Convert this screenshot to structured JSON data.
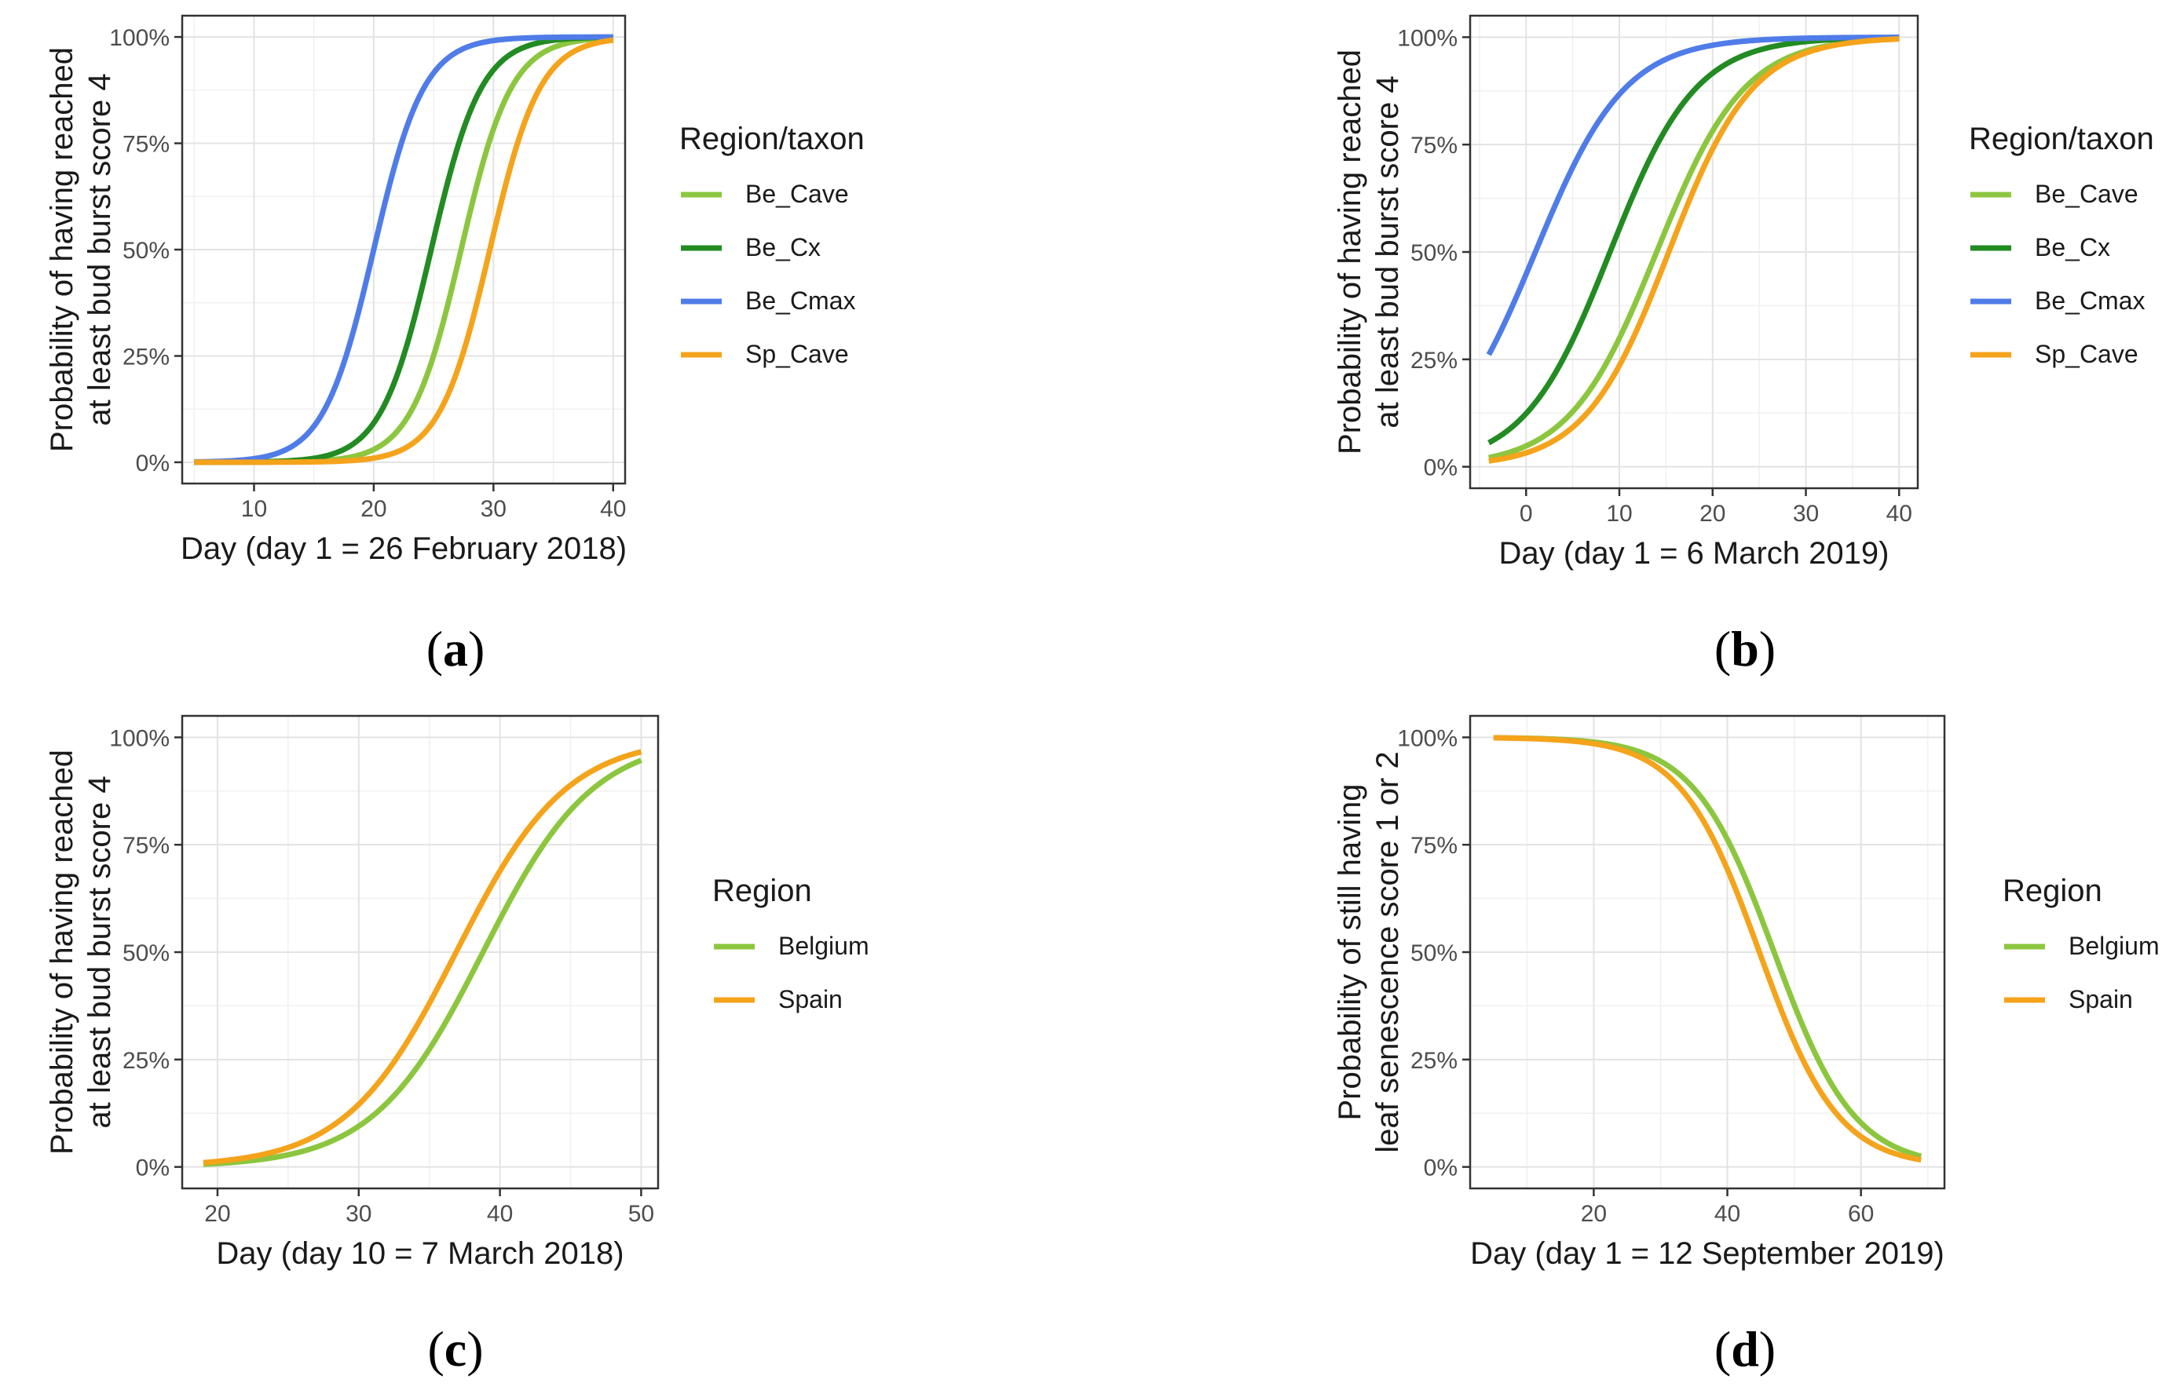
{
  "chart_data": [
    {
      "id": "a",
      "type": "line",
      "panel_label": "a",
      "xlabel": "Day (day 1 = 26 February 2018)",
      "ylabel_lines": [
        "Probability of having reached",
        "at least bud burst score 4"
      ],
      "xlim": [
        4,
        41
      ],
      "ylim": [
        -0.05,
        1.05
      ],
      "xticks": [
        10,
        20,
        30,
        40
      ],
      "yticks": [
        0,
        0.25,
        0.5,
        0.75,
        1.0
      ],
      "ytick_labels": [
        "0%",
        "25%",
        "50%",
        "75%",
        "100%"
      ],
      "legend_title": "Region/taxon",
      "series": [
        {
          "name": "Be_Cave",
          "color": "#8cc63f",
          "x_start": 5,
          "x_end": 40,
          "model": "logistic",
          "midpoint": 27.3,
          "scale": 2.1
        },
        {
          "name": "Be_Cx",
          "color": "#228b22",
          "x_start": 5,
          "x_end": 40,
          "model": "logistic",
          "midpoint": 24.8,
          "scale": 2.1
        },
        {
          "name": "Be_Cmax",
          "color": "#4f7ce8",
          "x_start": 5,
          "x_end": 40,
          "model": "logistic",
          "midpoint": 20.0,
          "scale": 2.1
        },
        {
          "name": "Sp_Cave",
          "color": "#f4a31b",
          "x_start": 5,
          "x_end": 40,
          "model": "logistic",
          "midpoint": 29.7,
          "scale": 2.1
        }
      ]
    },
    {
      "id": "b",
      "type": "line",
      "panel_label": "b",
      "xlabel": "Day (day 1 = 6 March 2019)",
      "ylabel_lines": [
        "Probability of having reached",
        "at least bud burst score 4"
      ],
      "xlim": [
        -6,
        42
      ],
      "ylim": [
        -0.05,
        1.05
      ],
      "xticks": [
        0,
        10,
        20,
        30,
        40
      ],
      "yticks": [
        0,
        0.25,
        0.5,
        0.75,
        1.0
      ],
      "ytick_labels": [
        "0%",
        "25%",
        "50%",
        "75%",
        "100%"
      ],
      "legend_title": "Region/taxon",
      "series": [
        {
          "name": "Be_Cave",
          "color": "#8cc63f",
          "x_start": -4,
          "x_end": 40,
          "model": "logistic",
          "midpoint": 14.0,
          "scale": 4.7
        },
        {
          "name": "Be_Cx",
          "color": "#228b22",
          "x_start": -4,
          "x_end": 40,
          "model": "logistic",
          "midpoint": 9.0,
          "scale": 4.6
        },
        {
          "name": "Be_Cmax",
          "color": "#4f7ce8",
          "x_start": -4,
          "x_end": 40,
          "model": "logistic",
          "midpoint": 1.0,
          "scale": 4.8
        },
        {
          "name": "Sp_Cave",
          "color": "#f4a31b",
          "x_start": -4,
          "x_end": 40,
          "model": "logistic",
          "midpoint": 15.3,
          "scale": 4.5
        }
      ]
    },
    {
      "id": "c",
      "type": "line",
      "panel_label": "c",
      "xlabel": "Day (day 10 = 7 March 2018)",
      "ylabel_lines": [
        "Probability of having reached",
        "at least bud burst score 4"
      ],
      "xlim": [
        17.5,
        51.2
      ],
      "ylim": [
        -0.05,
        1.05
      ],
      "xticks": [
        20,
        30,
        40,
        50
      ],
      "yticks": [
        0,
        0.25,
        0.5,
        0.75,
        1.0
      ],
      "ytick_labels": [
        "0%",
        "25%",
        "50%",
        "75%",
        "100%"
      ],
      "legend_title": "Region",
      "series": [
        {
          "name": "Belgium",
          "color": "#8cc63f",
          "x_start": 19,
          "x_end": 50,
          "model": "logistic",
          "midpoint": 38.8,
          "scale": 3.9
        },
        {
          "name": "Spain",
          "color": "#f4a31b",
          "x_start": 19,
          "x_end": 50,
          "model": "logistic",
          "midpoint": 36.9,
          "scale": 3.9
        }
      ]
    },
    {
      "id": "d",
      "type": "line",
      "panel_label": "d",
      "xlabel": "Day (day 1 = 12 September 2019)",
      "ylabel_lines": [
        "Probability of still having",
        "leaf senescence score 1 or 2"
      ],
      "xlim": [
        1.5,
        72.5
      ],
      "ylim": [
        -0.05,
        1.05
      ],
      "xticks": [
        20,
        40,
        60
      ],
      "yticks": [
        0,
        0.25,
        0.5,
        0.75,
        1.0
      ],
      "ytick_labels": [
        "0%",
        "25%",
        "50%",
        "75%",
        "100%"
      ],
      "legend_title": "Region",
      "series": [
        {
          "name": "Belgium",
          "color": "#8cc63f",
          "x_start": 5,
          "x_end": 69,
          "model": "logistic_desc",
          "midpoint": 47.0,
          "scale": 6.0
        },
        {
          "name": "Spain",
          "color": "#f4a31b",
          "x_start": 5,
          "x_end": 69,
          "model": "logistic_desc",
          "midpoint": 44.8,
          "scale": 5.9
        }
      ]
    }
  ]
}
